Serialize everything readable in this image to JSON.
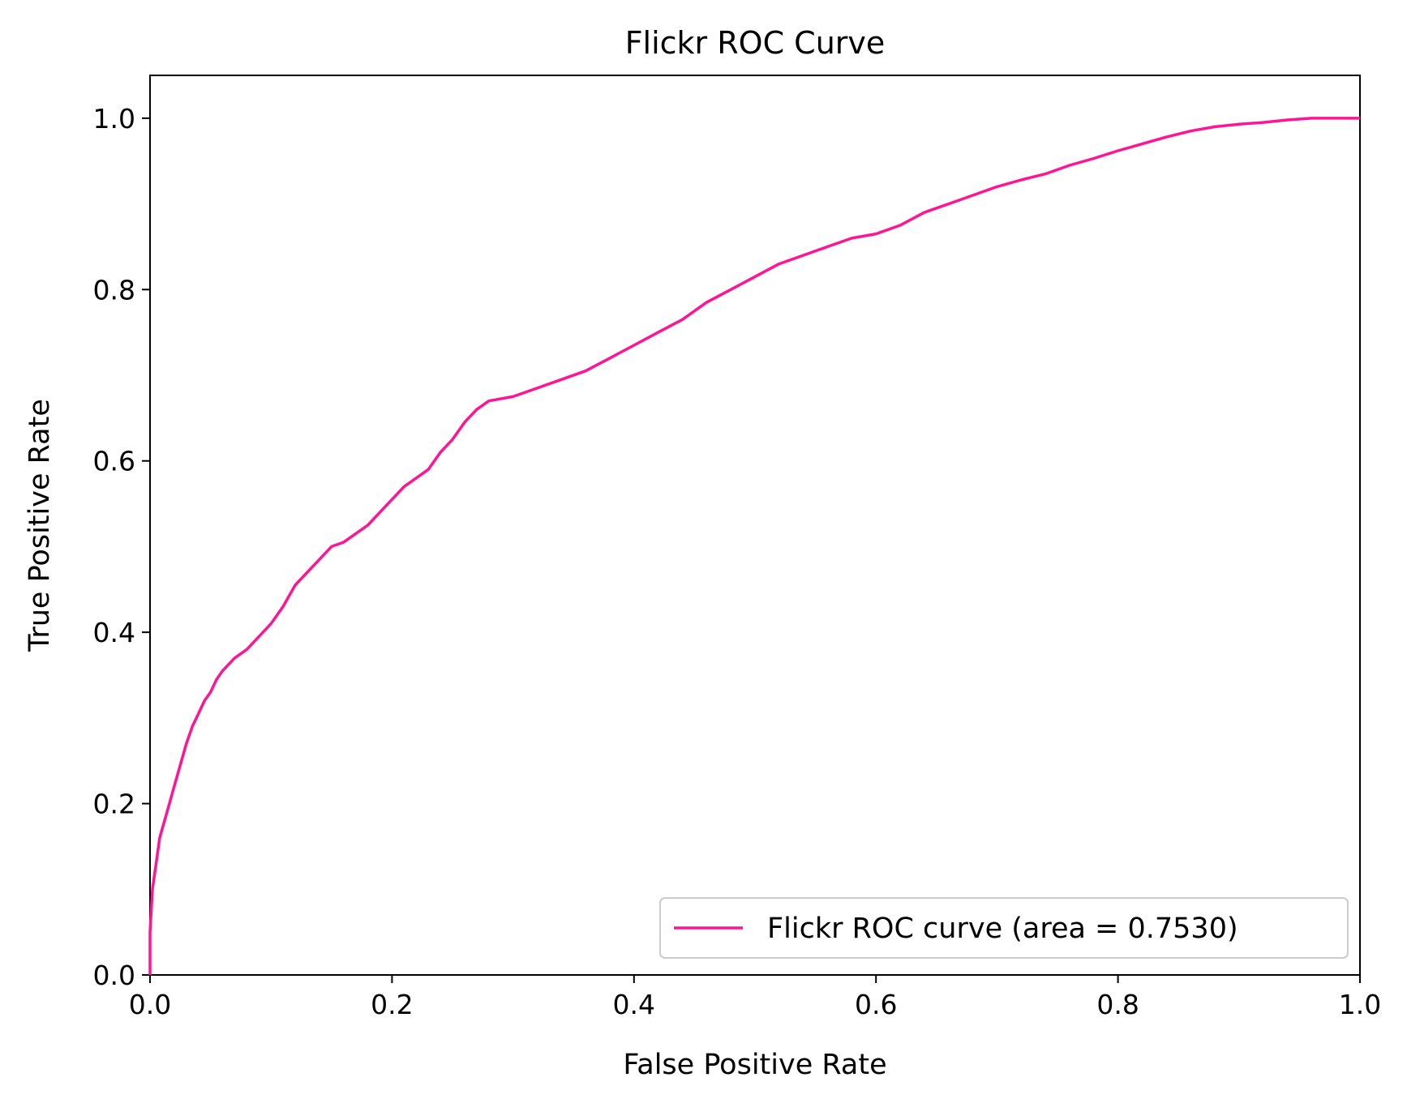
{
  "chart_data": {
    "type": "line",
    "title": "Flickr ROC Curve",
    "xlabel": "False Positive Rate",
    "ylabel": "True Positive Rate",
    "xlim": [
      0.0,
      1.0
    ],
    "ylim": [
      0.0,
      1.05
    ],
    "x_ticks": [
      "0.0",
      "0.2",
      "0.4",
      "0.6",
      "0.8",
      "1.0"
    ],
    "y_ticks": [
      "0.0",
      "0.2",
      "0.4",
      "0.6",
      "0.8",
      "1.0"
    ],
    "grid": false,
    "legend_position": "lower-right",
    "series": [
      {
        "name": "Flickr ROC curve (area = 0.7530)",
        "color": "#ff1493",
        "x": [
          0.0,
          0.0,
          0.002,
          0.005,
          0.008,
          0.012,
          0.016,
          0.02,
          0.025,
          0.03,
          0.035,
          0.04,
          0.045,
          0.05,
          0.055,
          0.06,
          0.07,
          0.08,
          0.09,
          0.1,
          0.11,
          0.12,
          0.13,
          0.14,
          0.15,
          0.16,
          0.17,
          0.18,
          0.19,
          0.2,
          0.21,
          0.22,
          0.23,
          0.24,
          0.25,
          0.26,
          0.27,
          0.28,
          0.3,
          0.32,
          0.34,
          0.36,
          0.38,
          0.4,
          0.42,
          0.44,
          0.46,
          0.48,
          0.5,
          0.52,
          0.54,
          0.56,
          0.58,
          0.6,
          0.62,
          0.64,
          0.66,
          0.68,
          0.7,
          0.72,
          0.74,
          0.76,
          0.78,
          0.8,
          0.82,
          0.84,
          0.86,
          0.88,
          0.9,
          0.92,
          0.94,
          0.96,
          0.98,
          1.0
        ],
        "y": [
          0.0,
          0.05,
          0.1,
          0.13,
          0.16,
          0.18,
          0.2,
          0.22,
          0.245,
          0.27,
          0.29,
          0.305,
          0.32,
          0.33,
          0.345,
          0.355,
          0.37,
          0.38,
          0.395,
          0.41,
          0.43,
          0.455,
          0.47,
          0.485,
          0.5,
          0.505,
          0.515,
          0.525,
          0.54,
          0.555,
          0.57,
          0.58,
          0.59,
          0.61,
          0.625,
          0.645,
          0.66,
          0.67,
          0.675,
          0.685,
          0.695,
          0.705,
          0.72,
          0.735,
          0.75,
          0.765,
          0.785,
          0.8,
          0.815,
          0.83,
          0.84,
          0.85,
          0.86,
          0.865,
          0.875,
          0.89,
          0.9,
          0.91,
          0.92,
          0.928,
          0.935,
          0.945,
          0.953,
          0.962,
          0.97,
          0.978,
          0.985,
          0.99,
          0.993,
          0.995,
          0.998,
          1.0,
          1.0,
          1.0
        ]
      }
    ]
  }
}
